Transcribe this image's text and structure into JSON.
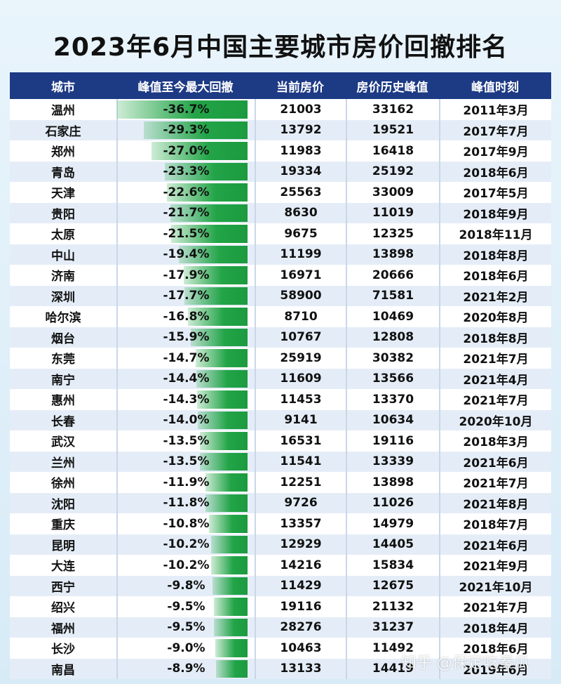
{
  "title": "2023年6月中国主要城市房价回撤排名",
  "watermark": "知乎 @保定吃秦瓜",
  "headers": [
    "城市",
    "峰值至今最大回撤",
    "当前房价",
    "房价历史峰值",
    "峰值时刻"
  ],
  "colors": {
    "header_bg": "#1d3a85",
    "bar": "#22a447"
  },
  "chart_data": {
    "type": "table",
    "title": "2023年6月中国主要城市房价回撤排名",
    "columns": [
      "城市",
      "峰值至今最大回撤",
      "当前房价",
      "房价历史峰值",
      "峰值时刻"
    ],
    "bar_column": "峰值至今最大回撤",
    "rows": [
      {
        "city": "温州",
        "drawdown": "-36.7%",
        "value": 36.7,
        "current": "21003",
        "peak": "33162",
        "peak_time": "2011年3月"
      },
      {
        "city": "石家庄",
        "drawdown": "-29.3%",
        "value": 29.3,
        "current": "13792",
        "peak": "19521",
        "peak_time": "2017年7月"
      },
      {
        "city": "郑州",
        "drawdown": "-27.0%",
        "value": 27.0,
        "current": "11983",
        "peak": "16418",
        "peak_time": "2017年9月"
      },
      {
        "city": "青岛",
        "drawdown": "-23.3%",
        "value": 23.3,
        "current": "19334",
        "peak": "25192",
        "peak_time": "2018年6月"
      },
      {
        "city": "天津",
        "drawdown": "-22.6%",
        "value": 22.6,
        "current": "25563",
        "peak": "33009",
        "peak_time": "2017年5月"
      },
      {
        "city": "贵阳",
        "drawdown": "-21.7%",
        "value": 21.7,
        "current": "8630",
        "peak": "11019",
        "peak_time": "2018年9月"
      },
      {
        "city": "太原",
        "drawdown": "-21.5%",
        "value": 21.5,
        "current": "9675",
        "peak": "12325",
        "peak_time": "2018年11月"
      },
      {
        "city": "中山",
        "drawdown": "-19.4%",
        "value": 19.4,
        "current": "11199",
        "peak": "13898",
        "peak_time": "2018年8月"
      },
      {
        "city": "济南",
        "drawdown": "-17.9%",
        "value": 17.9,
        "current": "16971",
        "peak": "20666",
        "peak_time": "2018年6月"
      },
      {
        "city": "深圳",
        "drawdown": "-17.7%",
        "value": 17.7,
        "current": "58900",
        "peak": "71581",
        "peak_time": "2021年2月"
      },
      {
        "city": "哈尔滨",
        "drawdown": "-16.8%",
        "value": 16.8,
        "current": "8710",
        "peak": "10469",
        "peak_time": "2020年8月"
      },
      {
        "city": "烟台",
        "drawdown": "-15.9%",
        "value": 15.9,
        "current": "10767",
        "peak": "12808",
        "peak_time": "2018年8月"
      },
      {
        "city": "东莞",
        "drawdown": "-14.7%",
        "value": 14.7,
        "current": "25919",
        "peak": "30382",
        "peak_time": "2021年7月"
      },
      {
        "city": "南宁",
        "drawdown": "-14.4%",
        "value": 14.4,
        "current": "11609",
        "peak": "13566",
        "peak_time": "2021年4月"
      },
      {
        "city": "惠州",
        "drawdown": "-14.3%",
        "value": 14.3,
        "current": "11453",
        "peak": "13370",
        "peak_time": "2021年7月"
      },
      {
        "city": "长春",
        "drawdown": "-14.0%",
        "value": 14.0,
        "current": "9141",
        "peak": "10634",
        "peak_time": "2020年10月"
      },
      {
        "city": "武汉",
        "drawdown": "-13.5%",
        "value": 13.5,
        "current": "16531",
        "peak": "19116",
        "peak_time": "2018年3月"
      },
      {
        "city": "兰州",
        "drawdown": "-13.5%",
        "value": 13.5,
        "current": "11541",
        "peak": "13339",
        "peak_time": "2021年6月"
      },
      {
        "city": "徐州",
        "drawdown": "-11.9%",
        "value": 11.9,
        "current": "12251",
        "peak": "13898",
        "peak_time": "2021年7月"
      },
      {
        "city": "沈阳",
        "drawdown": "-11.8%",
        "value": 11.8,
        "current": "9726",
        "peak": "11026",
        "peak_time": "2021年8月"
      },
      {
        "city": "重庆",
        "drawdown": "-10.8%",
        "value": 10.8,
        "current": "13357",
        "peak": "14979",
        "peak_time": "2018年7月"
      },
      {
        "city": "昆明",
        "drawdown": "-10.2%",
        "value": 10.2,
        "current": "12929",
        "peak": "14405",
        "peak_time": "2021年6月"
      },
      {
        "city": "大连",
        "drawdown": "-10.2%",
        "value": 10.2,
        "current": "14216",
        "peak": "15834",
        "peak_time": "2021年9月"
      },
      {
        "city": "西宁",
        "drawdown": "-9.8%",
        "value": 9.8,
        "current": "11429",
        "peak": "12675",
        "peak_time": "2021年10月"
      },
      {
        "city": "绍兴",
        "drawdown": "-9.5%",
        "value": 9.5,
        "current": "19116",
        "peak": "21132",
        "peak_time": "2021年7月"
      },
      {
        "city": "福州",
        "drawdown": "-9.5%",
        "value": 9.5,
        "current": "28276",
        "peak": "31237",
        "peak_time": "2018年4月"
      },
      {
        "city": "长沙",
        "drawdown": "-9.0%",
        "value": 9.0,
        "current": "10463",
        "peak": "11492",
        "peak_time": "2018年6月"
      },
      {
        "city": "南昌",
        "drawdown": "-8.9%",
        "value": 8.9,
        "current": "13133",
        "peak": "14419",
        "peak_time": "2019年6月"
      }
    ]
  }
}
